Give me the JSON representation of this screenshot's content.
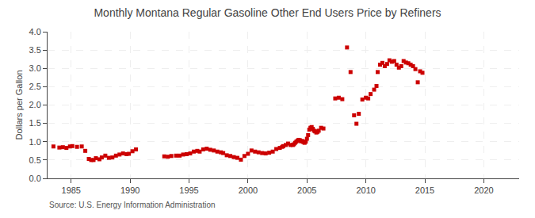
{
  "chart_data": {
    "type": "scatter",
    "title": "Monthly Montana Regular Gasoline Other End Users Price by Refiners",
    "y_label": "Dollars per Gallon",
    "annotations": [
      "Source: U.S. Energy Information Administration"
    ],
    "color": "#cc0000",
    "marker": "square",
    "grid": true,
    "xlim": [
      1983,
      2023
    ],
    "ylim": [
      0.0,
      4.0
    ],
    "xticks": [
      1985,
      1990,
      1995,
      2000,
      2005,
      2010,
      2015,
      2020
    ],
    "yticks": [
      {
        "value": 0.0,
        "label": "0.0"
      },
      0.5,
      {
        "value": 1.0,
        "label": "1.0"
      },
      1.5,
      {
        "value": 2.0,
        "label": "2.0"
      },
      2.5,
      {
        "value": 3.0,
        "label": "3.0"
      },
      3.5,
      {
        "value": 4.0,
        "label": "4.0"
      }
    ],
    "x": [
      1983.5,
      1984.0,
      1984.3,
      1984.6,
      1984.9,
      1985.1,
      1985.5,
      1985.9,
      1986.2,
      1986.5,
      1986.7,
      1986.9,
      1987.1,
      1987.4,
      1987.6,
      1987.9,
      1988.2,
      1988.5,
      1988.8,
      1989.1,
      1989.4,
      1989.7,
      1989.9,
      1990.2,
      1990.5,
      1992.9,
      1993.2,
      1993.5,
      1993.9,
      1994.2,
      1994.5,
      1994.8,
      1995.1,
      1995.4,
      1995.7,
      1995.9,
      1996.2,
      1996.5,
      1996.8,
      1997.1,
      1997.4,
      1997.7,
      1997.9,
      1998.2,
      1998.5,
      1998.8,
      1999.1,
      1999.4,
      1999.7,
      2000.0,
      2000.3,
      2000.6,
      2000.9,
      2001.2,
      2001.5,
      2001.8,
      2002.1,
      2002.4,
      2002.7,
      2002.9,
      2003.0,
      2003.2,
      2003.4,
      2003.6,
      2003.8,
      2003.9,
      2004.0,
      2004.1,
      2004.2,
      2004.3,
      2004.4,
      2004.5,
      2004.6,
      2004.7,
      2004.8,
      2004.9,
      2005.0,
      2005.1,
      2005.2,
      2005.3,
      2005.4,
      2005.5,
      2005.6,
      2005.7,
      2005.8,
      2005.9,
      2006.0,
      2006.2,
      2006.4,
      2007.4,
      2007.7,
      2008.0,
      2008.4,
      2008.7,
      2009.0,
      2009.2,
      2009.4,
      2009.7,
      2010.0,
      2010.2,
      2010.4,
      2010.7,
      2010.9,
      2011.0,
      2011.2,
      2011.4,
      2011.6,
      2011.8,
      2012.0,
      2012.2,
      2012.4,
      2012.6,
      2012.8,
      2013.0,
      2013.2,
      2013.4,
      2013.6,
      2013.8,
      2014.0,
      2014.2,
      2014.4,
      2014.6,
      2014.8
    ],
    "values": [
      0.87,
      0.84,
      0.85,
      0.83,
      0.87,
      0.88,
      0.86,
      0.87,
      0.75,
      0.53,
      0.5,
      0.5,
      0.55,
      0.52,
      0.57,
      0.62,
      0.56,
      0.57,
      0.62,
      0.65,
      0.68,
      0.66,
      0.67,
      0.74,
      0.79,
      0.6,
      0.59,
      0.61,
      0.62,
      0.62,
      0.65,
      0.66,
      0.68,
      0.73,
      0.75,
      0.73,
      0.79,
      0.81,
      0.78,
      0.76,
      0.73,
      0.71,
      0.69,
      0.63,
      0.61,
      0.58,
      0.56,
      0.51,
      0.61,
      0.67,
      0.76,
      0.73,
      0.71,
      0.69,
      0.68,
      0.7,
      0.73,
      0.8,
      0.83,
      0.86,
      0.88,
      0.91,
      0.95,
      0.91,
      0.91,
      0.93,
      0.97,
      1.0,
      1.03,
      1.05,
      1.04,
      1.01,
      1.02,
      0.99,
      0.97,
      1.0,
      1.08,
      1.18,
      1.33,
      1.38,
      1.4,
      1.35,
      1.3,
      1.28,
      1.25,
      1.27,
      1.3,
      1.38,
      1.36,
      2.18,
      2.2,
      2.16,
      3.57,
      2.9,
      1.72,
      1.49,
      1.76,
      2.15,
      2.2,
      2.18,
      2.3,
      2.42,
      2.52,
      2.9,
      3.1,
      3.15,
      3.06,
      3.12,
      3.22,
      3.18,
      3.2,
      3.1,
      3.02,
      3.06,
      3.2,
      3.16,
      3.14,
      3.1,
      3.06,
      2.98,
      2.62,
      2.92,
      2.88
    ]
  }
}
